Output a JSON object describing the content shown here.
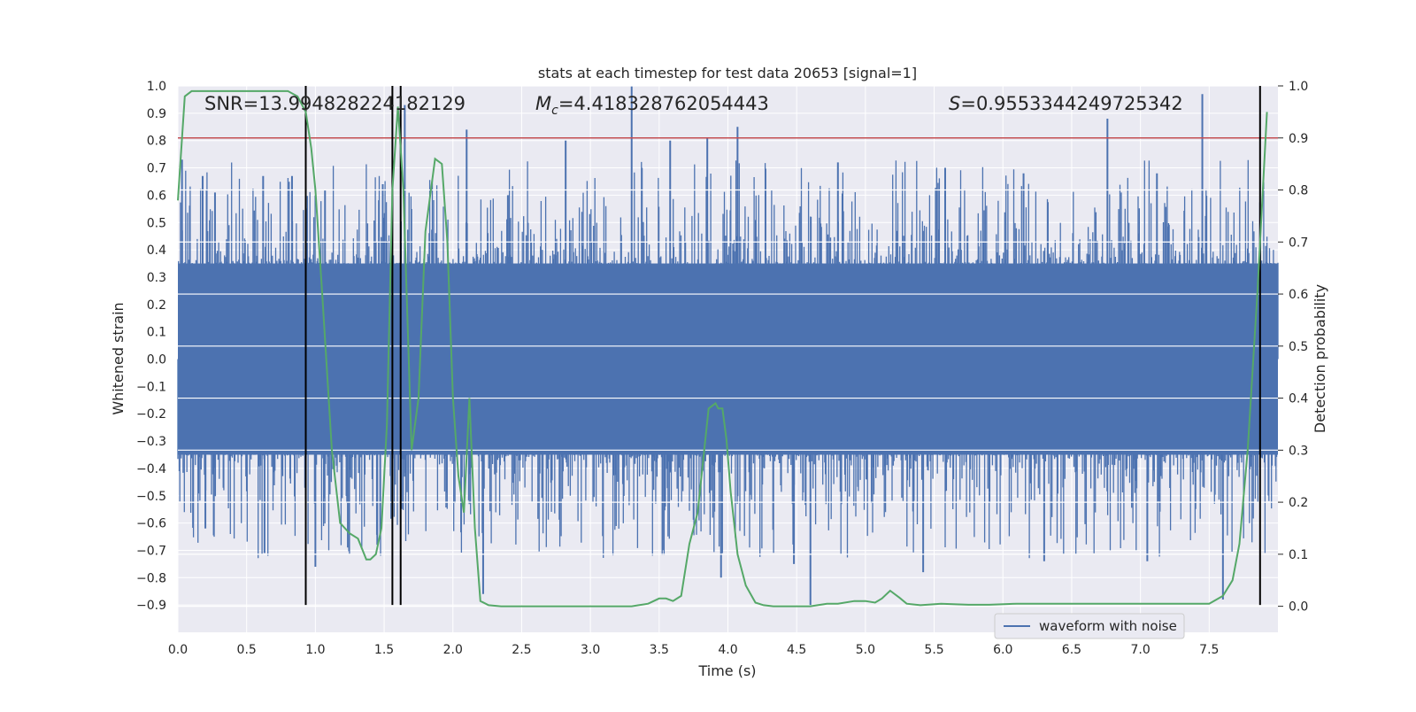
{
  "chart_data": {
    "type": "line",
    "title": "stats at each timestep for test data 20653 [signal=1]",
    "xlabel": "Time (s)",
    "ylabel": "Whitened strain",
    "y2label": "Detection probability",
    "xlim": [
      0.0,
      8.0
    ],
    "ylim": [
      -1.0,
      1.0
    ],
    "y2lim": [
      -0.05,
      1.0
    ],
    "xticks": [
      0.0,
      0.5,
      1.0,
      1.5,
      2.0,
      2.5,
      3.0,
      3.5,
      4.0,
      4.5,
      5.0,
      5.5,
      6.0,
      6.5,
      7.0,
      7.5
    ],
    "xtick_labels": [
      "0.0",
      "0.5",
      "1.0",
      "1.5",
      "2.0",
      "2.5",
      "3.0",
      "3.5",
      "4.0",
      "4.5",
      "5.0",
      "5.5",
      "6.0",
      "6.5",
      "7.0",
      "7.5"
    ],
    "yticks": [
      -0.9,
      -0.8,
      -0.7,
      -0.6,
      -0.5,
      -0.4,
      -0.3,
      -0.2,
      -0.1,
      0.0,
      0.1,
      0.2,
      0.3,
      0.4,
      0.5,
      0.6,
      0.7,
      0.8,
      0.9,
      1.0
    ],
    "ytick_labels": [
      "−0.9",
      "−0.8",
      "−0.7",
      "−0.6",
      "−0.5",
      "−0.4",
      "−0.3",
      "−0.2",
      "−0.1",
      "0.0",
      "0.1",
      "0.2",
      "0.3",
      "0.4",
      "0.5",
      "0.6",
      "0.7",
      "0.8",
      "0.9",
      "1.0"
    ],
    "y2ticks": [
      0.0,
      0.1,
      0.2,
      0.3,
      0.4,
      0.5,
      0.6,
      0.7,
      0.8,
      0.9,
      1.0
    ],
    "y2tick_labels": [
      "0.0",
      "0.1",
      "0.2",
      "0.3",
      "0.4",
      "0.5",
      "0.6",
      "0.7",
      "0.8",
      "0.9",
      "1.0"
    ],
    "annotations": {
      "snr": "SNR=13.994828224182129",
      "mc_symbol": "M",
      "mc_sub": "c",
      "mc_value": "=4.418328762054443",
      "s_symbol": "S",
      "s_value": "=0.9553344249725342"
    },
    "legend": {
      "label": "waveform with noise",
      "position": "lower-right"
    },
    "threshold_line": {
      "y2": 0.9,
      "color": "#c44e52"
    },
    "vertical_lines": {
      "x": [
        0.93,
        1.56,
        1.62,
        7.87
      ],
      "y_from": -0.9,
      "y_to": 1.0
    },
    "waveform": {
      "name": "waveform with noise",
      "color": "#4c72b0",
      "x_range": [
        0.0,
        8.0
      ],
      "core_amplitude": 0.35,
      "spikes": [
        {
          "x": 0.03,
          "y": 0.73
        },
        {
          "x": 0.18,
          "y": 0.67
        },
        {
          "x": 0.27,
          "y": 0.61
        },
        {
          "x": 0.62,
          "y": 0.67
        },
        {
          "x": 0.83,
          "y": 0.67
        },
        {
          "x": 1.07,
          "y": 0.62
        },
        {
          "x": 1.49,
          "y": 0.64
        },
        {
          "x": 1.65,
          "y": 0.93
        },
        {
          "x": 2.1,
          "y": 0.84
        },
        {
          "x": 2.4,
          "y": 0.6
        },
        {
          "x": 2.82,
          "y": 0.8
        },
        {
          "x": 3.3,
          "y": 1.0
        },
        {
          "x": 3.58,
          "y": 0.8
        },
        {
          "x": 3.85,
          "y": 0.81
        },
        {
          "x": 4.07,
          "y": 0.85
        },
        {
          "x": 4.8,
          "y": 0.72
        },
        {
          "x": 5.58,
          "y": 0.7
        },
        {
          "x": 6.15,
          "y": 0.68
        },
        {
          "x": 6.76,
          "y": 0.88
        },
        {
          "x": 7.12,
          "y": 0.68
        },
        {
          "x": 7.45,
          "y": 0.97
        },
        {
          "x": 0.2,
          "y": -0.62
        },
        {
          "x": 0.63,
          "y": -0.71
        },
        {
          "x": 1.0,
          "y": -0.76
        },
        {
          "x": 1.45,
          "y": -0.68
        },
        {
          "x": 2.22,
          "y": -0.86
        },
        {
          "x": 3.95,
          "y": -0.8
        },
        {
          "x": 4.48,
          "y": -0.75
        },
        {
          "x": 4.6,
          "y": -0.9
        },
        {
          "x": 5.42,
          "y": -0.78
        },
        {
          "x": 6.3,
          "y": -0.74
        },
        {
          "x": 7.05,
          "y": -0.74
        },
        {
          "x": 7.6,
          "y": -0.88
        }
      ]
    },
    "series": [
      {
        "name": "detection probability",
        "axis": "y2",
        "color": "#55a868",
        "x": [
          0.0,
          0.05,
          0.1,
          0.2,
          0.4,
          0.6,
          0.7,
          0.8,
          0.87,
          0.93,
          0.97,
          1.0,
          1.05,
          1.12,
          1.18,
          1.25,
          1.31,
          1.37,
          1.4,
          1.44,
          1.48,
          1.52,
          1.56,
          1.6,
          1.64,
          1.7,
          1.75,
          1.8,
          1.87,
          1.92,
          1.96,
          2.0,
          2.04,
          2.08,
          2.12,
          2.16,
          2.2,
          2.26,
          2.35,
          2.6,
          3.0,
          3.3,
          3.42,
          3.5,
          3.55,
          3.6,
          3.66,
          3.72,
          3.78,
          3.86,
          3.91,
          3.93,
          3.96,
          3.99,
          4.02,
          4.07,
          4.13,
          4.2,
          4.26,
          4.33,
          4.42,
          4.6,
          4.72,
          4.8,
          4.92,
          5.0,
          5.07,
          5.12,
          5.18,
          5.25,
          5.3,
          5.4,
          5.55,
          5.75,
          5.9,
          6.1,
          6.3,
          6.5,
          6.7,
          6.9,
          7.1,
          7.2,
          7.35,
          7.5,
          7.6,
          7.67,
          7.72,
          7.78,
          7.85,
          7.92
        ],
        "y": [
          0.78,
          0.98,
          0.99,
          0.99,
          0.99,
          0.99,
          0.99,
          0.99,
          0.98,
          0.95,
          0.88,
          0.8,
          0.6,
          0.3,
          0.16,
          0.14,
          0.13,
          0.09,
          0.09,
          0.1,
          0.15,
          0.35,
          0.8,
          0.96,
          0.8,
          0.3,
          0.4,
          0.72,
          0.86,
          0.85,
          0.7,
          0.4,
          0.25,
          0.18,
          0.4,
          0.15,
          0.01,
          0.002,
          0.0,
          0.0,
          0.0,
          0.0,
          0.005,
          0.015,
          0.015,
          0.01,
          0.02,
          0.12,
          0.18,
          0.38,
          0.39,
          0.38,
          0.38,
          0.32,
          0.22,
          0.1,
          0.04,
          0.007,
          0.002,
          0.0,
          0.0,
          0.0,
          0.005,
          0.005,
          0.01,
          0.01,
          0.007,
          0.015,
          0.03,
          0.016,
          0.005,
          0.002,
          0.005,
          0.003,
          0.003,
          0.005,
          0.005,
          0.005,
          0.005,
          0.005,
          0.005,
          0.005,
          0.005,
          0.005,
          0.02,
          0.05,
          0.12,
          0.3,
          0.6,
          0.95
        ]
      }
    ]
  }
}
